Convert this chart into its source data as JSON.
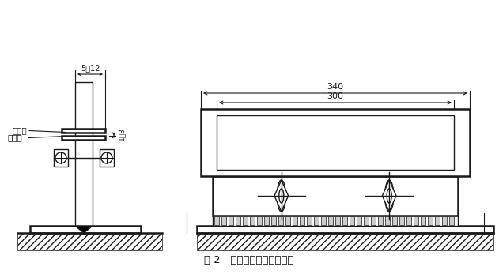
{
  "bg_color": "#ffffff",
  "line_color": "#1a1a1a",
  "title": "图 2   气鈟鈟切工件的安装图",
  "label_di_tan_gang": "低碗钙",
  "label_chun_huo_gang": "缹火钙",
  "dim_5_12": "5～12",
  "dim_1_3": "1～3",
  "dim_340": "340",
  "dim_300": "300",
  "fig_width": 6.31,
  "fig_height": 3.52
}
